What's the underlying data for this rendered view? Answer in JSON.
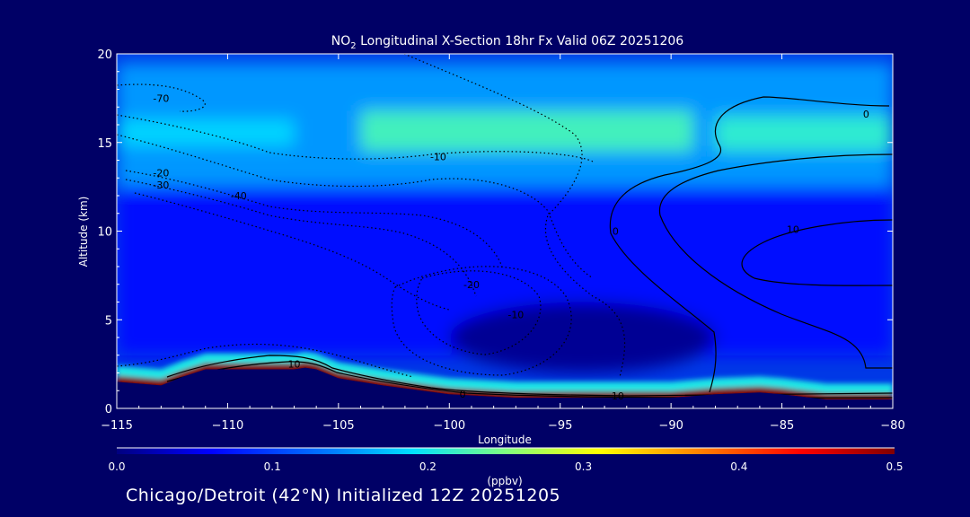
{
  "chart_data": {
    "type": "heatmap",
    "title": {
      "prefix": "NO",
      "subscript": "2",
      "suffix": " Longitudinal X-Section 18hr  Fx Valid 06Z 20251206"
    },
    "xlabel": "Longitude",
    "ylabel": "Altitude (km)",
    "xlim": [
      -115,
      -80
    ],
    "ylim": [
      0,
      20
    ],
    "x_ticks": [
      -115,
      -110,
      -105,
      -100,
      -95,
      -90,
      -85,
      -80
    ],
    "x_tick_labels": [
      "−115",
      "−110",
      "−105",
      "−100",
      "−95",
      "−90",
      "−85",
      "−80"
    ],
    "y_ticks": [
      0,
      5,
      10,
      15,
      20
    ],
    "y_tick_labels": [
      "0",
      "5",
      "10",
      "15",
      "20"
    ],
    "grid": false,
    "colorbar": {
      "label": "(ppbv)",
      "min": 0.0,
      "max": 0.5,
      "ticks": [
        "0.0",
        "0.1",
        "0.2",
        "0.3",
        "0.4",
        "0.5"
      ],
      "colormap": [
        "#000080",
        "#0000ff",
        "#0080ff",
        "#00e0ff",
        "#80ff80",
        "#ffff00",
        "#ff8000",
        "#ff0000",
        "#800000"
      ]
    },
    "field_regions": [
      {
        "name": "upper green band",
        "lon": [
          -104,
          -89
        ],
        "alt": [
          14.5,
          16.8
        ],
        "value": 0.22
      },
      {
        "name": "upper right green band",
        "lon": [
          -88,
          -80
        ],
        "alt": [
          14.5,
          16.5
        ],
        "value": 0.21
      },
      {
        "name": "upper left band",
        "lon": [
          -115,
          -107
        ],
        "alt": [
          14.8,
          16.3
        ],
        "value": 0.18
      },
      {
        "name": "upper troposphere",
        "lon": [
          -115,
          -80
        ],
        "alt": [
          12.5,
          19.5
        ],
        "value": 0.14
      },
      {
        "name": "mid troposphere",
        "lon": [
          -115,
          -80
        ],
        "alt": [
          3,
          12.5
        ],
        "value": 0.07
      },
      {
        "name": "central minimum",
        "lon": [
          -100,
          -88
        ],
        "alt": [
          2,
          6
        ],
        "value": 0.01
      },
      {
        "name": "boundary layer",
        "lon": [
          -115,
          -80
        ],
        "alt": [
          0.5,
          2.5
        ],
        "value": 0.5
      }
    ],
    "terrain": {
      "lon": [
        -115,
        -113,
        -112,
        -111,
        -109,
        -107,
        -106.5,
        -106,
        -105,
        -103,
        -100,
        -97,
        -95,
        -90,
        -88,
        -86,
        -85,
        -83,
        -80
      ],
      "alt": [
        1.5,
        1.3,
        1.8,
        2.2,
        2.2,
        2.2,
        2.3,
        2.2,
        1.7,
        1.3,
        0.8,
        0.6,
        0.6,
        0.6,
        0.8,
        0.9,
        0.8,
        0.5,
        0.5
      ]
    },
    "contour_labels": [
      {
        "text": "-70",
        "lon": -113,
        "alt": 17.5
      },
      {
        "text": "-10",
        "lon": -100.5,
        "alt": 14.2
      },
      {
        "text": "0",
        "lon": -81.2,
        "alt": 16.6
      },
      {
        "text": "-20",
        "lon": -113,
        "alt": 13.3
      },
      {
        "text": "-30",
        "lon": -113,
        "alt": 12.6
      },
      {
        "text": "-40",
        "lon": -109.5,
        "alt": 12.0
      },
      {
        "text": "0",
        "lon": -92.5,
        "alt": 10.0
      },
      {
        "text": "10",
        "lon": -84.5,
        "alt": 10.1
      },
      {
        "text": "-20",
        "lon": -99,
        "alt": 7.0
      },
      {
        "text": "-10",
        "lon": -97,
        "alt": 5.3
      },
      {
        "text": "10",
        "lon": -107,
        "alt": 2.5
      },
      {
        "text": "0",
        "lon": -99.4,
        "alt": 0.8
      },
      {
        "text": "10",
        "lon": -92.4,
        "alt": 0.7
      }
    ]
  },
  "footer": {
    "text": "Chicago/Detroit (42°N) Initialized 12Z 20251205"
  }
}
